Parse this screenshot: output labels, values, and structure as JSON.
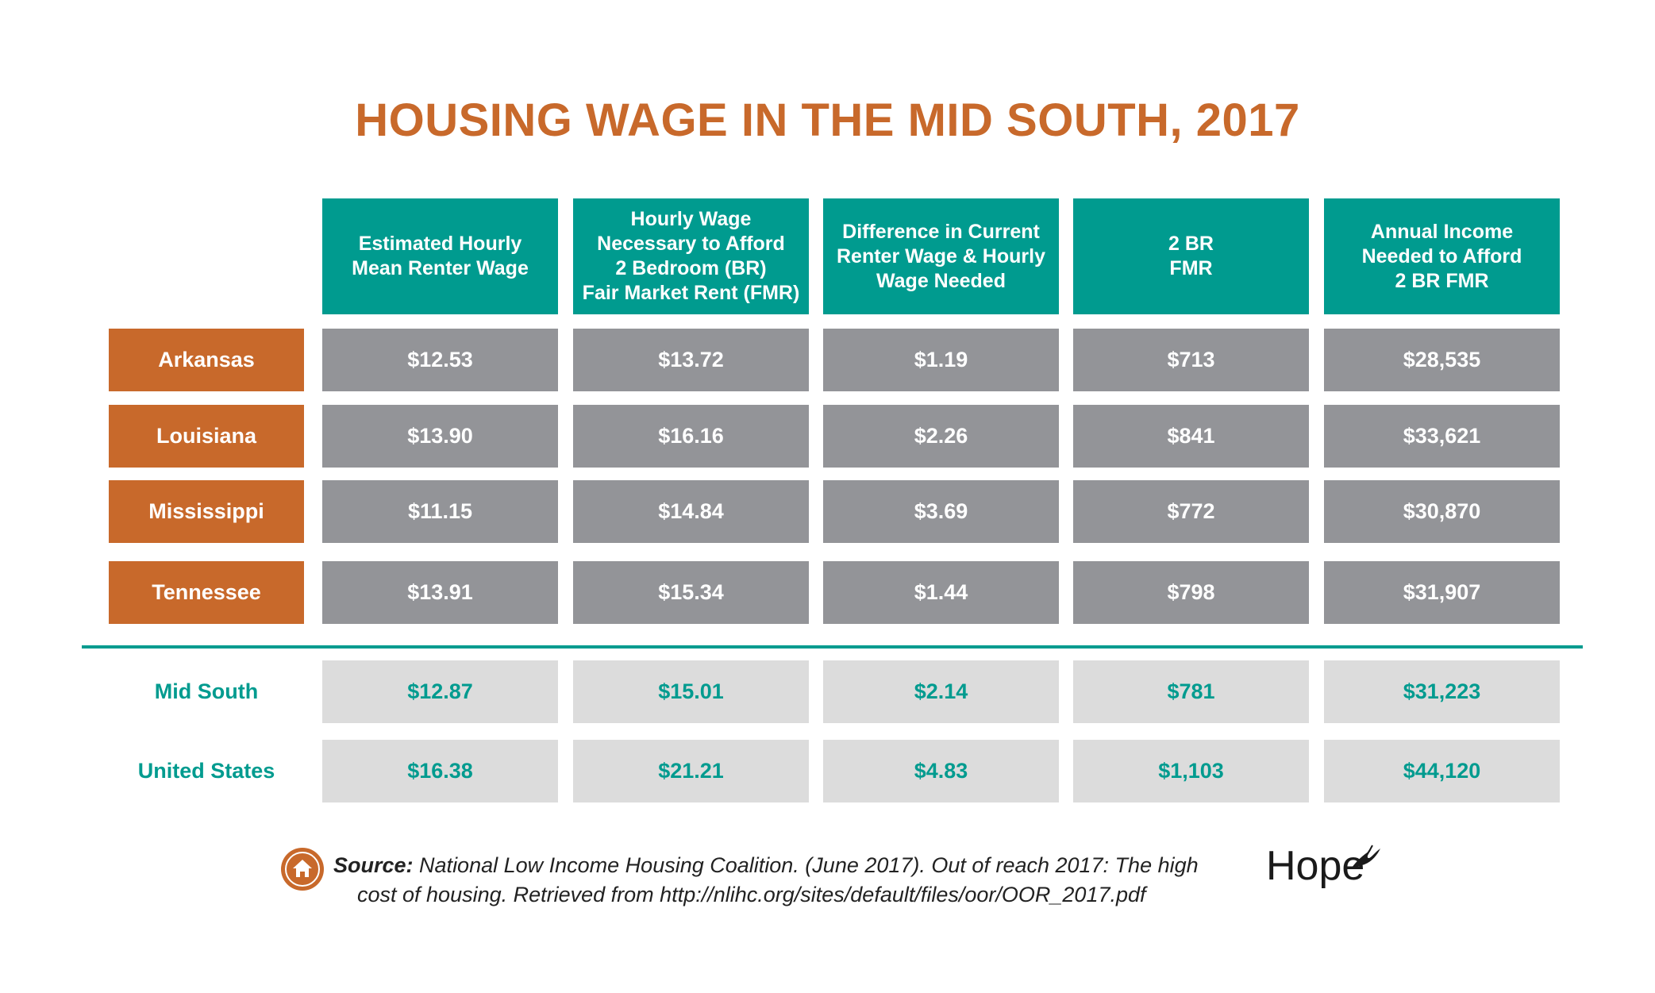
{
  "title": "HOUSING WAGE IN THE MID SOUTH, 2017",
  "columns": [
    [
      "Estimated Hourly",
      "Mean Renter Wage"
    ],
    [
      "Hourly Wage",
      "Necessary to Afford",
      "2 Bedroom (BR)",
      "Fair Market Rent (FMR)"
    ],
    [
      "Difference in Current",
      "Renter Wage & Hourly",
      "Wage Needed"
    ],
    [
      "2 BR",
      "FMR"
    ],
    [
      "Annual Income",
      "Needed to Afford",
      "2 BR FMR"
    ]
  ],
  "rows": [
    {
      "label": "Arkansas",
      "values": [
        "$12.53",
        "$13.72",
        "$1.19",
        "$713",
        "$28,535"
      ]
    },
    {
      "label": "Louisiana",
      "values": [
        "$13.90",
        "$16.16",
        "$2.26",
        "$841",
        "$33,621"
      ]
    },
    {
      "label": "Mississippi",
      "values": [
        "$11.15",
        "$14.84",
        "$3.69",
        "$772",
        "$30,870"
      ]
    },
    {
      "label": "Tennessee",
      "values": [
        "$13.91",
        "$15.34",
        "$1.44",
        "$798",
        "$31,907"
      ]
    }
  ],
  "summary_rows": [
    {
      "label": "Mid South",
      "values": [
        "$12.87",
        "$15.01",
        "$2.14",
        "$781",
        "$31,223"
      ]
    },
    {
      "label": "United States",
      "values": [
        "$16.38",
        "$21.21",
        "$4.83",
        "$1,103",
        "$44,120"
      ]
    }
  ],
  "source": {
    "label": "Source:",
    "line1": "National Low Income Housing Coalition. (June 2017). Out of reach 2017: The high",
    "line2": "cost of housing. Retrieved from http://nlihc.org/sites/default/files/oor/OOR_2017.pdf",
    "icon": "house-icon"
  },
  "logo": {
    "text": "Hope"
  },
  "colors": {
    "orange": "#c8692b",
    "teal": "#009b8f",
    "gray": "#939498",
    "light_gray": "#dcdcdc"
  },
  "chart_data": {
    "type": "table",
    "title": "HOUSING WAGE IN THE MID SOUTH, 2017",
    "columns": [
      "Estimated Hourly Mean Renter Wage",
      "Hourly Wage Necessary to Afford 2 Bedroom (BR) Fair Market Rent (FMR)",
      "Difference in Current Renter Wage & Hourly Wage Needed",
      "2 BR FMR",
      "Annual Income Needed to Afford 2 BR FMR"
    ],
    "rows": [
      {
        "label": "Arkansas",
        "values": [
          12.53,
          13.72,
          1.19,
          713,
          28535
        ]
      },
      {
        "label": "Louisiana",
        "values": [
          13.9,
          16.16,
          2.26,
          841,
          33621
        ]
      },
      {
        "label": "Mississippi",
        "values": [
          11.15,
          14.84,
          3.69,
          772,
          30870
        ]
      },
      {
        "label": "Tennessee",
        "values": [
          13.91,
          15.34,
          1.44,
          798,
          31907
        ]
      },
      {
        "label": "Mid South",
        "values": [
          12.87,
          15.01,
          2.14,
          781,
          31223
        ]
      },
      {
        "label": "United States",
        "values": [
          16.38,
          21.21,
          4.83,
          1103,
          44120
        ]
      }
    ]
  }
}
